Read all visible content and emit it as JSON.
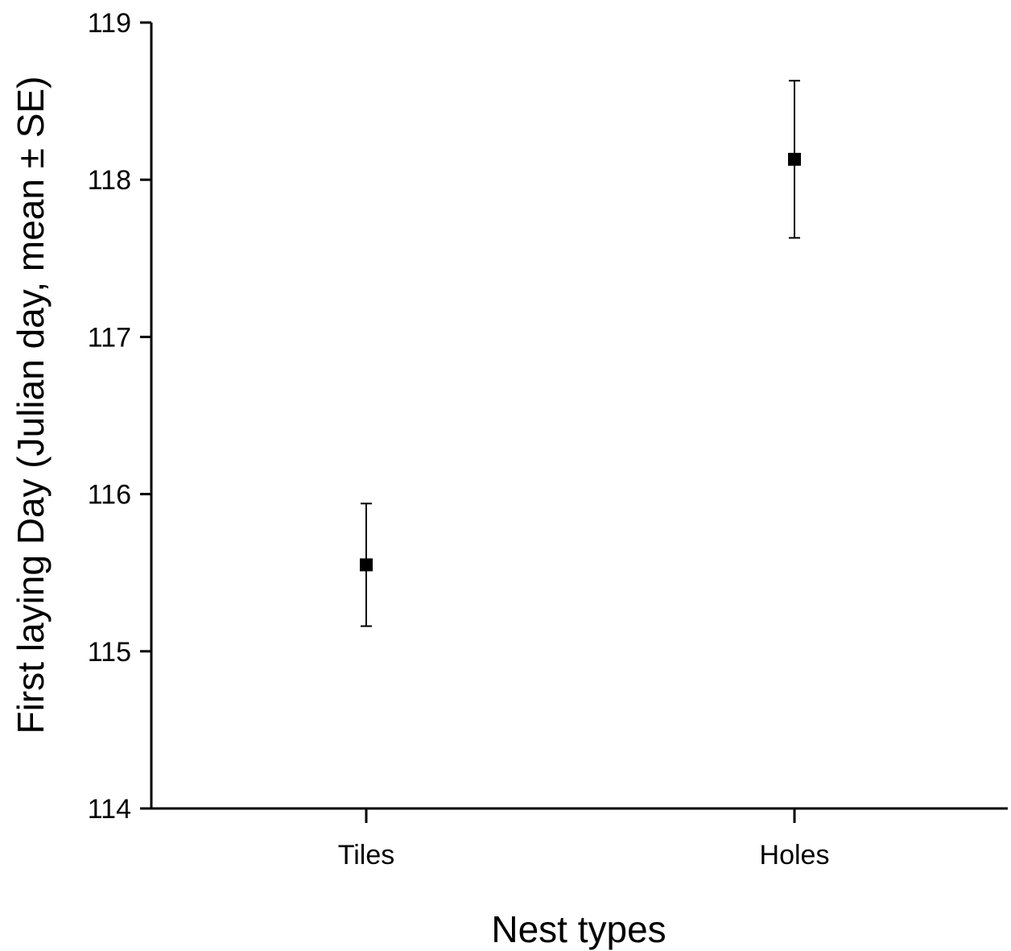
{
  "chart_data": {
    "type": "scatter",
    "title": "",
    "xlabel": "Nest types",
    "ylabel": "First laying Day (Julian day, mean ± SE)",
    "categories": [
      "Tiles",
      "Holes"
    ],
    "series": [
      {
        "values": [
          115.55,
          118.13
        ],
        "se": [
          0.39,
          0.5
        ]
      }
    ],
    "ylim": [
      114,
      119
    ],
    "yticks": [
      "114",
      "115",
      "116",
      "117",
      "118",
      "119"
    ],
    "grid": false,
    "legend": "none",
    "marker": "square",
    "color": "#000000"
  }
}
